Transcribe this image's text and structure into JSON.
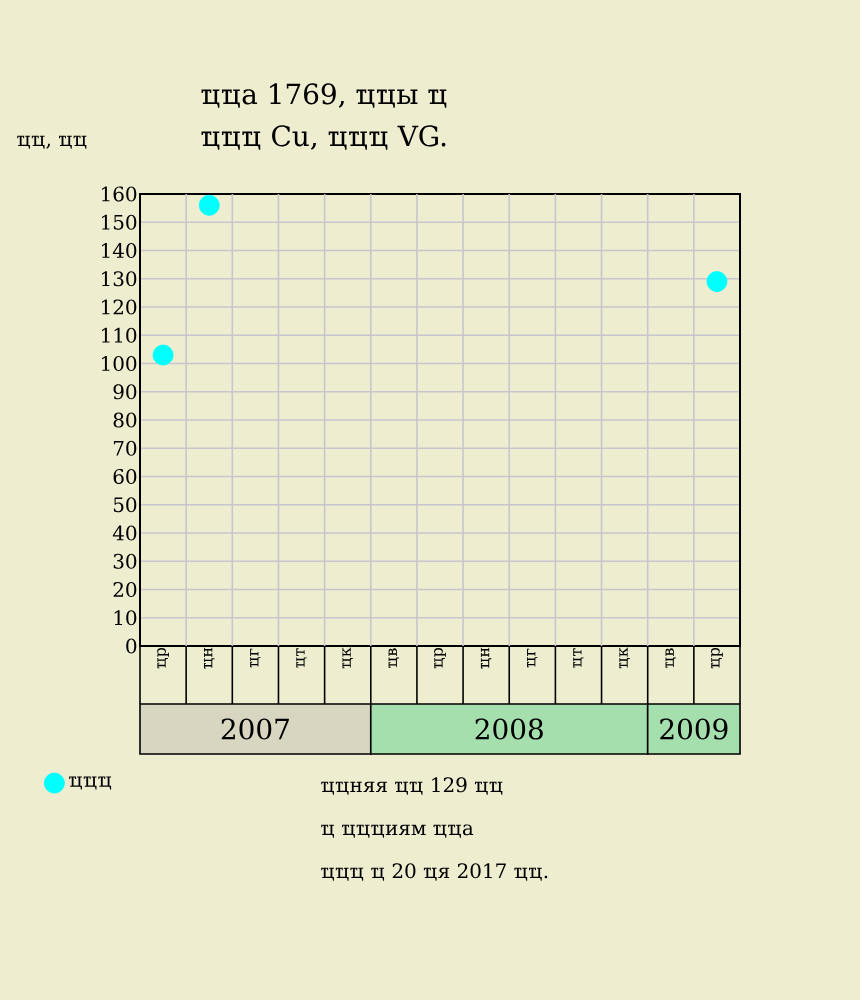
{
  "chart_data": {
    "type": "scatter",
    "title": "ҵҵа 1769, ҵҵы ҵ",
    "subtitle": "ҵҵҵ Cu, ҵҵҵ VG.",
    "ylabel": "ҵҵ, ҵҵ",
    "series": [
      {
        "name": "ҵҵҵ",
        "color": "#00ffff",
        "values": [
          103,
          156,
          null,
          null,
          null,
          null,
          null,
          null,
          null,
          null,
          null,
          null,
          129
        ]
      }
    ],
    "categories": [
      "ҵр",
      "ҵн",
      "ҵг",
      "ҵт",
      "ҵк",
      "ҵв",
      "ҵр",
      "ҵн",
      "ҵг",
      "ҵт",
      "ҵк",
      "ҵв",
      "ҵр"
    ],
    "x2lim": [
      "2007-03",
      "2009-05"
    ],
    "x2ticks": [
      {
        "value": "2007-08",
        "label": "2007"
      },
      {
        "value": "2008-07",
        "label": "2008"
      },
      {
        "value": "2009-03",
        "label": "2009"
      }
    ],
    "ylim": [
      0,
      160
    ],
    "yticks": [
      0,
      10,
      20,
      30,
      40,
      50,
      60,
      70,
      80,
      90,
      100,
      110,
      120,
      130,
      140,
      150,
      160
    ],
    "annotations": [
      "ҵҵняя ҵҵ 129 ҵҵ",
      "ҵ ҵҵҵиям ҵҵа",
      "ҵҵҵ ҵ 20 ҵя 2017 ҵҵ."
    ],
    "grid": true,
    "legend": "bottom"
  }
}
